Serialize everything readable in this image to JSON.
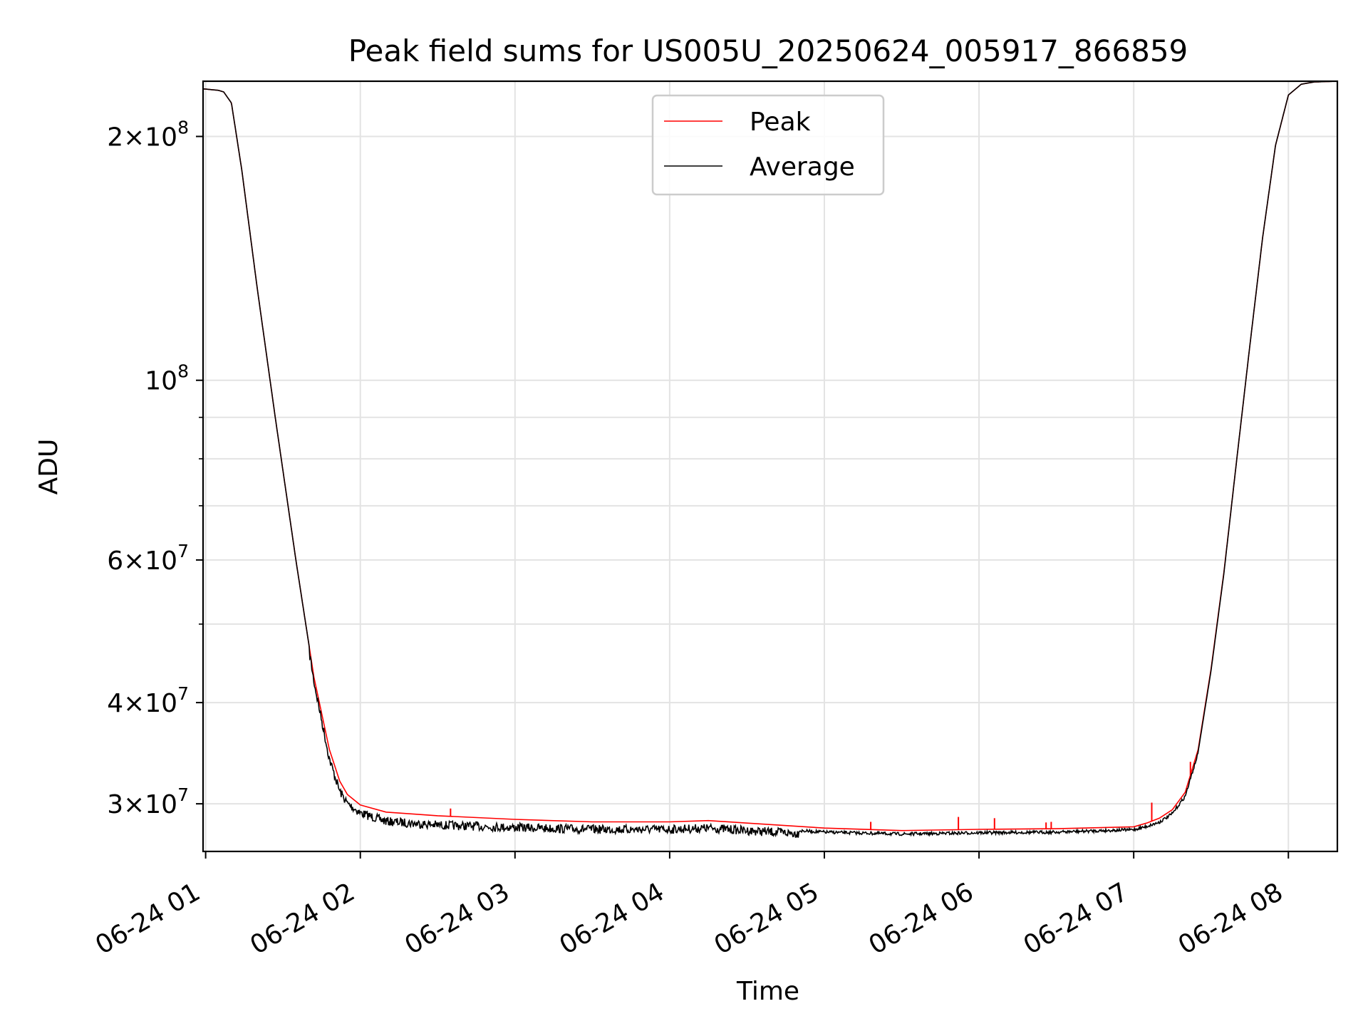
{
  "chart_data": {
    "type": "line",
    "title": "Peak field sums for US005U_20250624_005917_866859",
    "xlabel": "Time",
    "ylabel": "ADU",
    "y_scale": "log",
    "grid": true,
    "legend_position": "upper center",
    "xlim": [
      "2025-06-24 00:59",
      "2025-06-24 08:19"
    ],
    "ylim": [
      26200000,
      234000000
    ],
    "x_ticks": [
      {
        "value": "2025-06-24 01:00",
        "label": "06-24 01"
      },
      {
        "value": "2025-06-24 02:00",
        "label": "06-24 02"
      },
      {
        "value": "2025-06-24 03:00",
        "label": "06-24 03"
      },
      {
        "value": "2025-06-24 04:00",
        "label": "06-24 04"
      },
      {
        "value": "2025-06-24 05:00",
        "label": "06-24 05"
      },
      {
        "value": "2025-06-24 06:00",
        "label": "06-24 06"
      },
      {
        "value": "2025-06-24 07:00",
        "label": "06-24 07"
      },
      {
        "value": "2025-06-24 08:00",
        "label": "06-24 08"
      }
    ],
    "y_major_ticks": [
      {
        "value": 30000000,
        "mantissa": "3",
        "exponent": "7"
      },
      {
        "value": 40000000,
        "mantissa": "4",
        "exponent": "7"
      },
      {
        "value": 60000000,
        "mantissa": "6",
        "exponent": "7"
      },
      {
        "value": 100000000,
        "mantissa": "",
        "exponent": "8"
      },
      {
        "value": 200000000,
        "mantissa": "2",
        "exponent": "8"
      }
    ],
    "y_minor_ticks": [
      50000000,
      70000000,
      80000000,
      90000000
    ],
    "times_symbol": "×",
    "base_label": "10",
    "series": [
      {
        "name": "Peak",
        "color": "#ff0000",
        "x": [
          "2025-06-24 00:59",
          "2025-06-24 01:05",
          "2025-06-24 01:07",
          "2025-06-24 01:10",
          "2025-06-24 01:14",
          "2025-06-24 01:20",
          "2025-06-24 01:27",
          "2025-06-24 01:35",
          "2025-06-24 01:42",
          "2025-06-24 01:48",
          "2025-06-24 01:52",
          "2025-06-24 01:55",
          "2025-06-24 02:00",
          "2025-06-24 02:10",
          "2025-06-24 02:30",
          "2025-06-24 03:00",
          "2025-06-24 03:30",
          "2025-06-24 04:00",
          "2025-06-24 04:15",
          "2025-06-24 04:30",
          "2025-06-24 05:00",
          "2025-06-24 05:30",
          "2025-06-24 06:00",
          "2025-06-24 06:30",
          "2025-06-24 07:00",
          "2025-06-24 07:05",
          "2025-06-24 07:10",
          "2025-06-24 07:15",
          "2025-06-24 07:20",
          "2025-06-24 07:25",
          "2025-06-24 07:30",
          "2025-06-24 07:35",
          "2025-06-24 07:40",
          "2025-06-24 07:45",
          "2025-06-24 07:50",
          "2025-06-24 07:55",
          "2025-06-24 08:00",
          "2025-06-24 08:05",
          "2025-06-24 08:10",
          "2025-06-24 08:19"
        ],
        "y": [
          229000000,
          228000000,
          227000000,
          220000000,
          182000000,
          130000000,
          90000000,
          60000000,
          43000000,
          35000000,
          32000000,
          30800000,
          29900000,
          29300000,
          29000000,
          28700000,
          28500000,
          28500000,
          28600000,
          28400000,
          28000000,
          27800000,
          27900000,
          27950000,
          28100000,
          28400000,
          28800000,
          29500000,
          31000000,
          35000000,
          44000000,
          58000000,
          80000000,
          110000000,
          150000000,
          195000000,
          225000000,
          232000000,
          233500000,
          234000000
        ],
        "spikes": [
          {
            "x": "2025-06-24 02:35",
            "y": 29600000
          },
          {
            "x": "2025-06-24 05:18",
            "y": 28500000
          },
          {
            "x": "2025-06-24 05:52",
            "y": 28900000
          },
          {
            "x": "2025-06-24 06:06",
            "y": 28800000
          },
          {
            "x": "2025-06-24 06:26",
            "y": 28450000
          },
          {
            "x": "2025-06-24 06:28",
            "y": 28500000
          },
          {
            "x": "2025-06-24 07:07",
            "y": 30100000
          },
          {
            "x": "2025-06-24 07:22",
            "y": 33800000
          }
        ]
      },
      {
        "name": "Average",
        "color": "#000000",
        "x": [
          "2025-06-24 00:59",
          "2025-06-24 01:05",
          "2025-06-24 01:07",
          "2025-06-24 01:10",
          "2025-06-24 01:14",
          "2025-06-24 01:20",
          "2025-06-24 01:27",
          "2025-06-24 01:35",
          "2025-06-24 01:42",
          "2025-06-24 01:48",
          "2025-06-24 01:52",
          "2025-06-24 01:55",
          "2025-06-24 02:00",
          "2025-06-24 02:10",
          "2025-06-24 02:30",
          "2025-06-24 03:00",
          "2025-06-24 03:30",
          "2025-06-24 04:00",
          "2025-06-24 04:15",
          "2025-06-24 04:30",
          "2025-06-24 05:00",
          "2025-06-24 05:30",
          "2025-06-24 06:00",
          "2025-06-24 06:30",
          "2025-06-24 07:00",
          "2025-06-24 07:05",
          "2025-06-24 07:10",
          "2025-06-24 07:15",
          "2025-06-24 07:20",
          "2025-06-24 07:25",
          "2025-06-24 07:30",
          "2025-06-24 07:35",
          "2025-06-24 07:40",
          "2025-06-24 07:45",
          "2025-06-24 07:50",
          "2025-06-24 07:55",
          "2025-06-24 08:00",
          "2025-06-24 08:05",
          "2025-06-24 08:10",
          "2025-06-24 08:19"
        ],
        "y": [
          229000000,
          228000000,
          227000000,
          220000000,
          182000000,
          130000000,
          90000000,
          60000000,
          43000000,
          34500000,
          31500000,
          30400000,
          29600000,
          28900000,
          28600000,
          28400000,
          28250000,
          28250000,
          28350000,
          28150000,
          27800000,
          27650000,
          27750000,
          27800000,
          28000000,
          28250000,
          28600000,
          29300000,
          30800000,
          34800000,
          43800000,
          57800000,
          80000000,
          110000000,
          150000000,
          195000000,
          225000000,
          232000000,
          233500000,
          234000000
        ],
        "noise_fraction": 0.025
      }
    ]
  }
}
